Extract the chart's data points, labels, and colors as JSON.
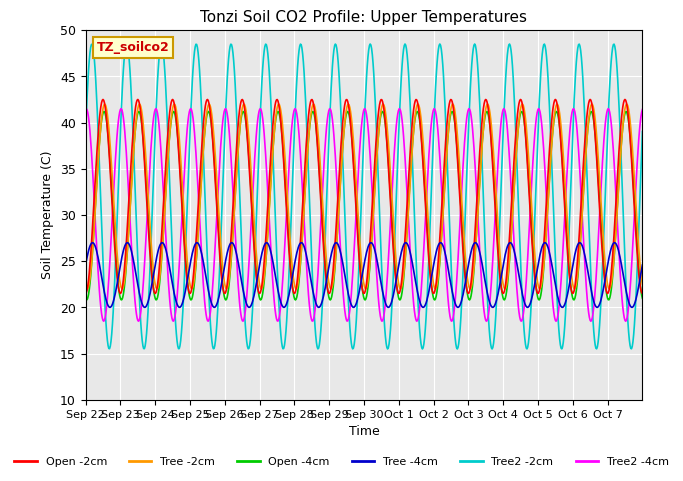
{
  "title": "Tonzi Soil CO2 Profile: Upper Temperatures",
  "xlabel": "Time",
  "ylabel": "Soil Temperature (C)",
  "ylim": [
    10,
    50
  ],
  "yticks": [
    10,
    15,
    20,
    25,
    30,
    35,
    40,
    45,
    50
  ],
  "bg_color": "#e8e8e8",
  "label_box_text": "TZ_soilco2",
  "label_box_bg": "#ffffcc",
  "label_box_edge": "#cc9900",
  "series": [
    {
      "label": "Open -2cm",
      "color": "#ff0000"
    },
    {
      "label": "Tree -2cm",
      "color": "#ff9900"
    },
    {
      "label": "Open -4cm",
      "color": "#00cc00"
    },
    {
      "label": "Tree -4cm",
      "color": "#0000cc"
    },
    {
      "label": "Tree2 -2cm",
      "color": "#00cccc"
    },
    {
      "label": "Tree2 -4cm",
      "color": "#ff00ff"
    }
  ],
  "xtick_labels": [
    "Sep 22",
    "Sep 23",
    "Sep 24",
    "Sep 25",
    "Sep 26",
    "Sep 27",
    "Sep 28",
    "Sep 29",
    "Sep 30",
    "Oct 1",
    "Oct 2",
    "Oct 3",
    "Oct 4",
    "Oct 5",
    "Oct 6",
    "Oct 7"
  ],
  "n_days": 16,
  "pts_per_day": 48,
  "open2_amp": 10.5,
  "open2_base": 32.0,
  "open2_phase": 0.0,
  "tree2_amp": 10.0,
  "tree2_base": 32.0,
  "tree2_phase": 0.05,
  "open4_amp": 10.2,
  "open4_base": 31.0,
  "open4_phase": 0.03,
  "tree4_amp": 3.5,
  "tree4_base": 23.5,
  "tree4_phase": -0.3,
  "tree22_amp": 16.5,
  "tree22_base": 32.0,
  "tree22_phase": 0.68,
  "tree24_amp": 11.5,
  "tree24_base": 30.0,
  "tree24_phase": 0.52
}
